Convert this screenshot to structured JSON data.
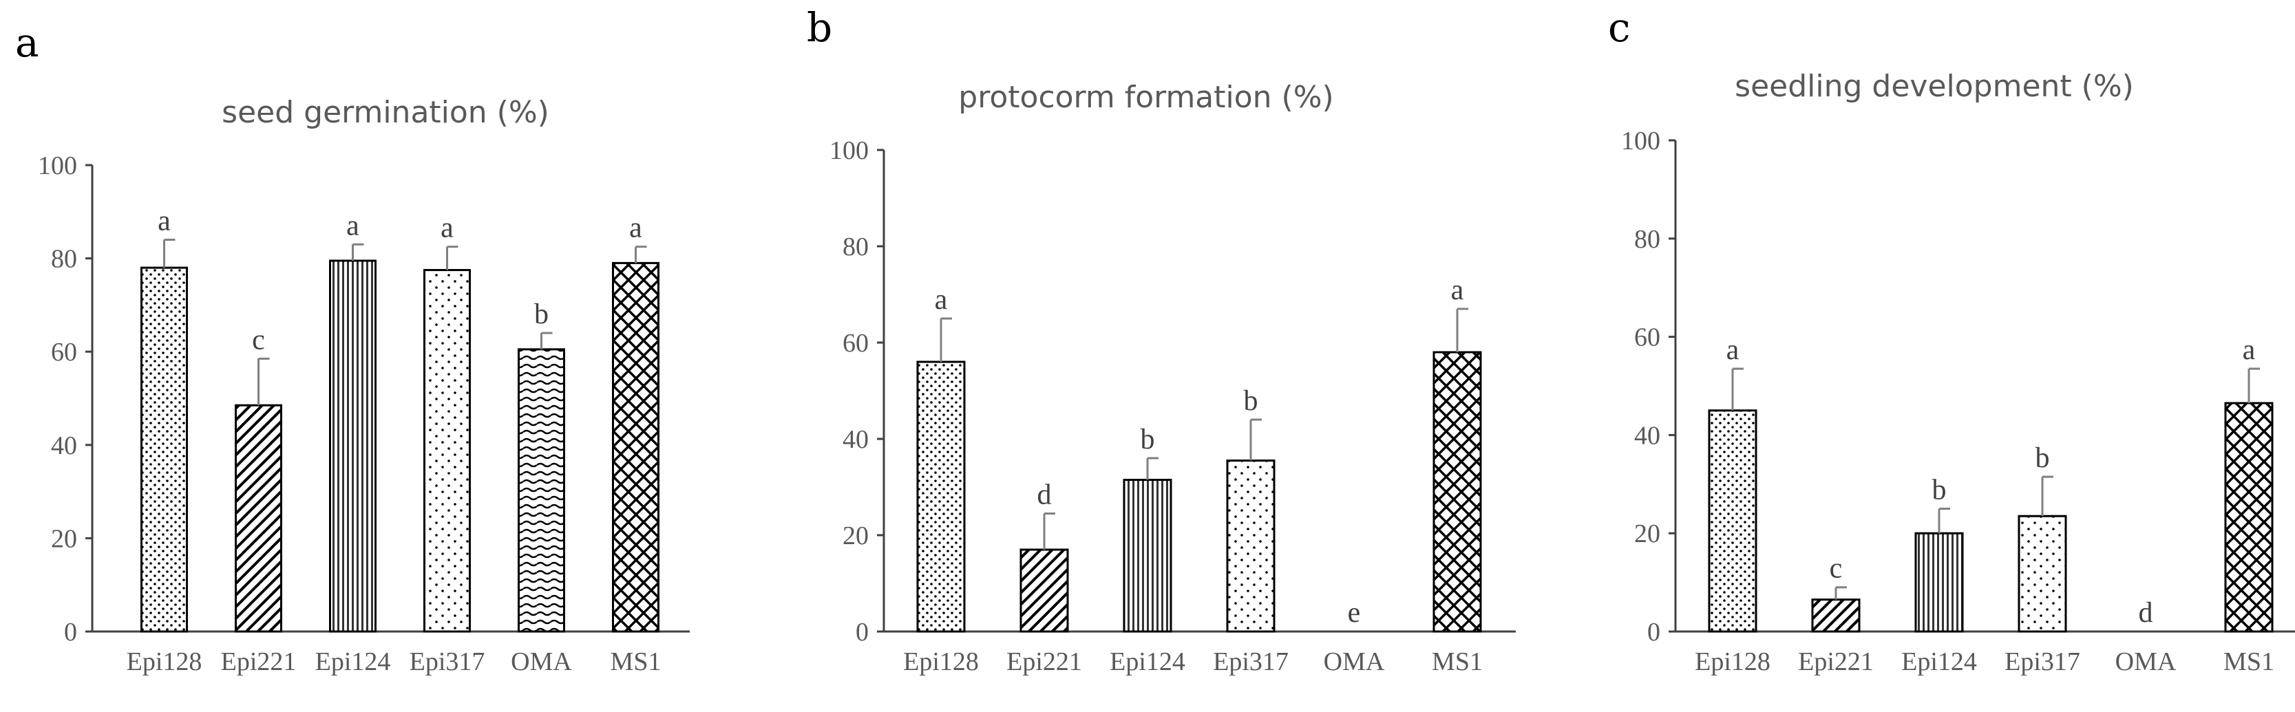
{
  "chart_data": [
    {
      "type": "bar",
      "panel": "a",
      "title": "seed germination (%)",
      "categories": [
        "Epi128",
        "Epi221",
        "Epi124",
        "Epi317",
        "OMA",
        "MS1"
      ],
      "values": [
        78,
        48.5,
        79.5,
        77.5,
        60.5,
        79
      ],
      "errors": [
        6,
        10,
        3.5,
        5,
        3.5,
        3.5
      ],
      "letters": [
        "a",
        "c",
        "a",
        "a",
        "b",
        "a"
      ],
      "patterns": [
        "dots",
        "diag",
        "vlines",
        "dots-sparse",
        "hwaves",
        "crosshatch"
      ],
      "ylim": [
        0,
        100
      ],
      "yticks": [
        0,
        20,
        40,
        60,
        80,
        100
      ],
      "xlabel": "",
      "ylabel": ""
    },
    {
      "type": "bar",
      "panel": "b",
      "title": "protocorm formation (%)",
      "categories": [
        "Epi128",
        "Epi221",
        "Epi124",
        "Epi317",
        "OMA",
        "MS1"
      ],
      "values": [
        56,
        17,
        31.5,
        35.5,
        0,
        58
      ],
      "errors": [
        9,
        7.5,
        4.5,
        8.5,
        0,
        9
      ],
      "letters": [
        "a",
        "d",
        "b",
        "b",
        "e",
        "a"
      ],
      "patterns": [
        "dots",
        "diag",
        "vlines",
        "dots-sparse",
        "hwaves",
        "crosshatch"
      ],
      "ylim": [
        0,
        100
      ],
      "yticks": [
        0,
        20,
        40,
        60,
        80,
        100
      ],
      "xlabel": "",
      "ylabel": ""
    },
    {
      "type": "bar",
      "panel": "c",
      "title": "seedling development (%)",
      "categories": [
        "Epi128",
        "Epi221",
        "Epi124",
        "Epi317",
        "OMA",
        "MS1"
      ],
      "values": [
        45,
        6.5,
        20,
        23.5,
        0,
        46.5
      ],
      "errors": [
        8.5,
        2.5,
        5,
        8,
        0,
        7
      ],
      "letters": [
        "a",
        "c",
        "b",
        "b",
        "d",
        "a"
      ],
      "patterns": [
        "dots",
        "diag",
        "vlines",
        "dots-sparse",
        "hwaves",
        "crosshatch"
      ],
      "ylim": [
        0,
        100
      ],
      "yticks": [
        0,
        20,
        40,
        60,
        80,
        100
      ],
      "xlabel": "",
      "ylabel": ""
    }
  ]
}
